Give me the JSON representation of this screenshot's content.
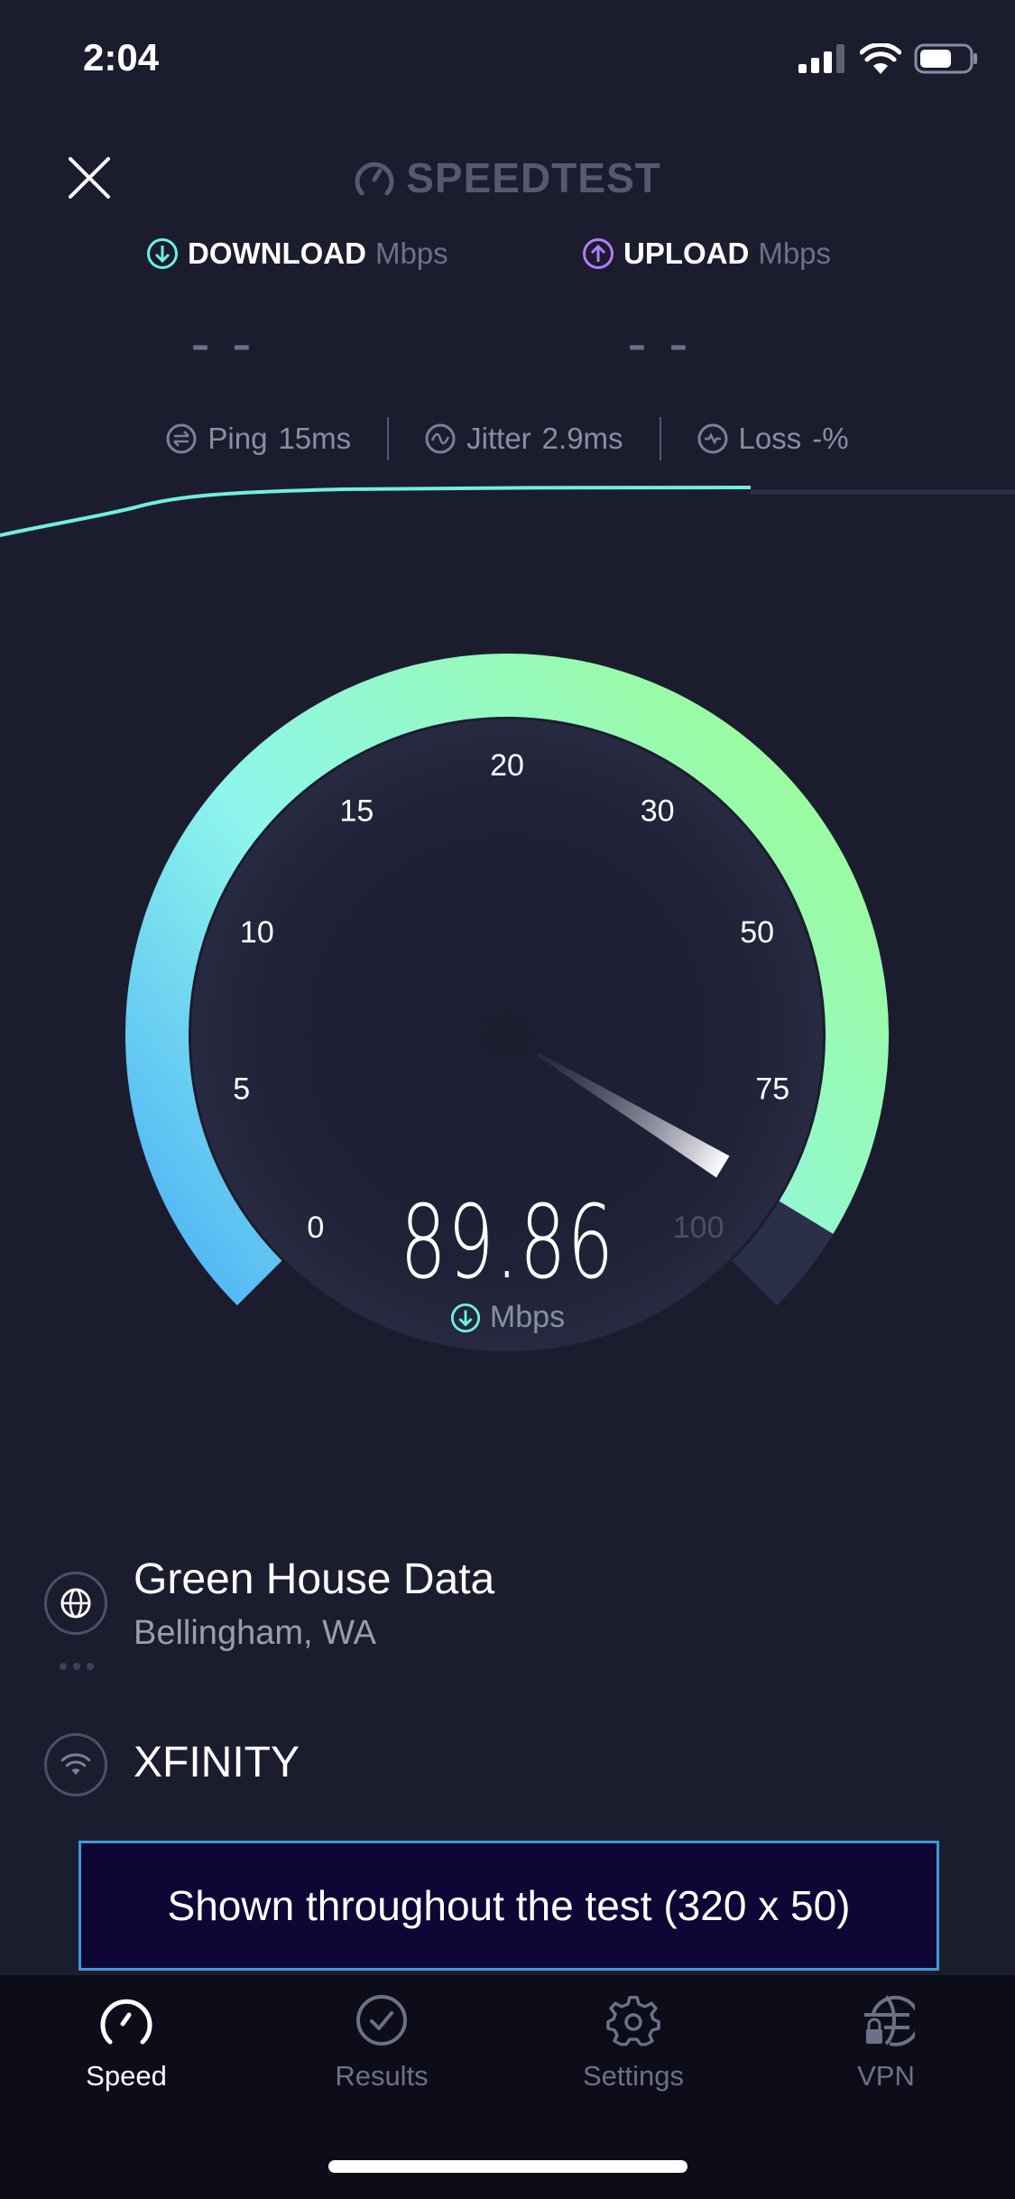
{
  "status_bar": {
    "time": "2:04",
    "icons": [
      "cellular-signal-icon",
      "wifi-icon",
      "battery-icon"
    ]
  },
  "header": {
    "close_icon": "close-icon",
    "logo_text": "SPEEDTEST"
  },
  "download": {
    "label": "DOWNLOAD",
    "unit": "Mbps",
    "value": "– –",
    "color": "#6ff0e0"
  },
  "upload": {
    "label": "UPLOAD",
    "unit": "Mbps",
    "value": "– –",
    "color": "#b77cf6"
  },
  "stats": {
    "ping": {
      "label": "Ping",
      "value": "15",
      "unit": "ms"
    },
    "jitter": {
      "label": "Jitter",
      "value": "2.9",
      "unit": "ms"
    },
    "loss": {
      "label": "Loss",
      "value": "-%"
    }
  },
  "gauge": {
    "value": 89.86,
    "ticks": [
      "0",
      "5",
      "10",
      "15",
      "20",
      "30",
      "50",
      "75",
      "100"
    ],
    "display_value": "89.86",
    "unit": "Mbps",
    "colors": {
      "start": "#4db0f6",
      "mid": "#8ef6ec",
      "end": "#9bfba0",
      "track": "#2b2f4a"
    }
  },
  "server": {
    "name": "Green House Data",
    "location": "Bellingham, WA"
  },
  "isp": {
    "name": "XFINITY"
  },
  "ad": {
    "text": "Shown throughout the test (320 x 50)"
  },
  "tabs": [
    {
      "label": "Speed",
      "icon": "speedometer-icon",
      "active": true
    },
    {
      "label": "Results",
      "icon": "checkmark-circle-icon",
      "active": false
    },
    {
      "label": "Settings",
      "icon": "gear-icon",
      "active": false
    },
    {
      "label": "VPN",
      "icon": "globe-lock-icon",
      "active": false
    }
  ]
}
